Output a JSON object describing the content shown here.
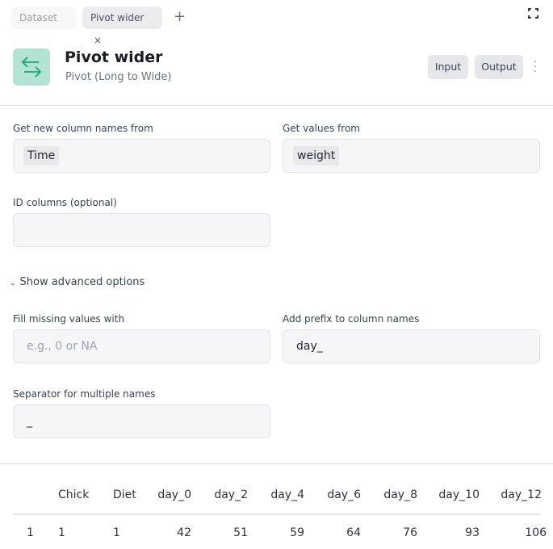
{
  "tabs": [
    {
      "label": "Dataset",
      "active": false
    },
    {
      "label": "Pivot wider",
      "active": true,
      "close": "×"
    }
  ],
  "add_tab": "+",
  "header": {
    "title": "Pivot wider",
    "subtitle": "Pivot (Long to Wide)",
    "icon": "swap-arrows-icon",
    "icon_color": "#1fa37a",
    "icon_bg": "#b3e3d4",
    "input_label": "Input",
    "output_label": "Output"
  },
  "form": {
    "names_from": {
      "label": "Get new column names from",
      "value": "Time"
    },
    "values_from": {
      "label": "Get values from",
      "value": "weight"
    },
    "id_cols": {
      "label": "ID columns (optional)",
      "value": ""
    },
    "advanced_toggle": "Show advanced options",
    "fill": {
      "label": "Fill missing values with",
      "placeholder": "e.g., 0 or NA"
    },
    "prefix": {
      "label": "Add prefix to column names",
      "value": "day_"
    },
    "separator": {
      "label": "Separator for multiple names",
      "value": "_"
    }
  },
  "table": {
    "columns": [
      "",
      "Chick",
      "Diet",
      "day_0",
      "day_2",
      "day_4",
      "day_6",
      "day_8",
      "day_10",
      "day_12"
    ],
    "rows": [
      [
        "1",
        "1",
        "1",
        "42",
        "51",
        "59",
        "64",
        "76",
        "93",
        "106"
      ]
    ]
  }
}
